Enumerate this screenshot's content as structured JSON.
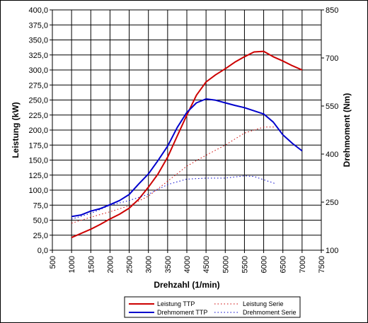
{
  "chart_data": {
    "type": "line",
    "xlabel": "Drehzahl (1/min)",
    "ylabel_left": "Leistung (kW)",
    "ylabel_right": "Drehmoment (Nm)",
    "xlim": [
      500,
      7500
    ],
    "x_ticks": [
      500,
      1000,
      1500,
      2000,
      2500,
      3000,
      3500,
      4000,
      4500,
      5000,
      5500,
      6000,
      6500,
      7000,
      7500
    ],
    "ylim_left": [
      0,
      400
    ],
    "y_ticks_left": [
      "0,0",
      "25,0",
      "50,0",
      "75,0",
      "100,0",
      "125,0",
      "150,0",
      "175,0",
      "200,0",
      "225,0",
      "250,0",
      "275,0",
      "300,0",
      "325,0",
      "350,0",
      "375,0",
      "400,0"
    ],
    "ylim_right": [
      100,
      850
    ],
    "y_ticks_right": [
      100,
      250,
      400,
      550,
      700,
      850
    ],
    "grid": true,
    "legend_position": "bottom",
    "series": [
      {
        "name": "Leistung TTP",
        "axis": "left",
        "color": "#cc0000",
        "style": "solid",
        "x": [
          1000,
          1250,
          1500,
          1750,
          2000,
          2250,
          2500,
          2750,
          3000,
          3250,
          3500,
          3750,
          4000,
          4250,
          4500,
          4750,
          5000,
          5250,
          5500,
          5750,
          6000,
          6250,
          6500,
          6750,
          7000
        ],
        "y": [
          21,
          28,
          35,
          43,
          52,
          60,
          70,
          85,
          105,
          127,
          155,
          190,
          225,
          258,
          280,
          292,
          302,
          313,
          322,
          330,
          331,
          322,
          315,
          307,
          300
        ]
      },
      {
        "name": "Drehmoment TTP",
        "axis": "right",
        "color": "#0000cc",
        "style": "solid",
        "x": [
          1000,
          1250,
          1500,
          1750,
          2000,
          2250,
          2500,
          2750,
          3000,
          3250,
          3500,
          3750,
          4000,
          4250,
          4500,
          4750,
          5000,
          5250,
          5500,
          5750,
          6000,
          6250,
          6500,
          6750,
          7000
        ],
        "y": [
          205,
          210,
          222,
          230,
          242,
          255,
          274,
          307,
          338,
          380,
          425,
          483,
          530,
          560,
          572,
          568,
          560,
          552,
          545,
          535,
          525,
          500,
          460,
          433,
          410
        ]
      },
      {
        "name": "Leistung Serie",
        "axis": "left",
        "color": "#cc0000",
        "style": "dotted",
        "x": [
          1000,
          1500,
          2000,
          2500,
          3000,
          3500,
          4000,
          4500,
          5000,
          5500,
          6000,
          6300
        ],
        "y": [
          45,
          55,
          64,
          74,
          90,
          115,
          140,
          158,
          175,
          195,
          205,
          205
        ]
      },
      {
        "name": "Drehmoment Serie",
        "axis": "right",
        "color": "#0000cc",
        "style": "dotted",
        "x": [
          1000,
          1500,
          2000,
          2500,
          3000,
          3500,
          4000,
          4500,
          5000,
          5500,
          5750,
          6000,
          6300
        ],
        "y": [
          197,
          215,
          240,
          255,
          275,
          305,
          322,
          325,
          325,
          332,
          330,
          320,
          308
        ]
      }
    ]
  }
}
